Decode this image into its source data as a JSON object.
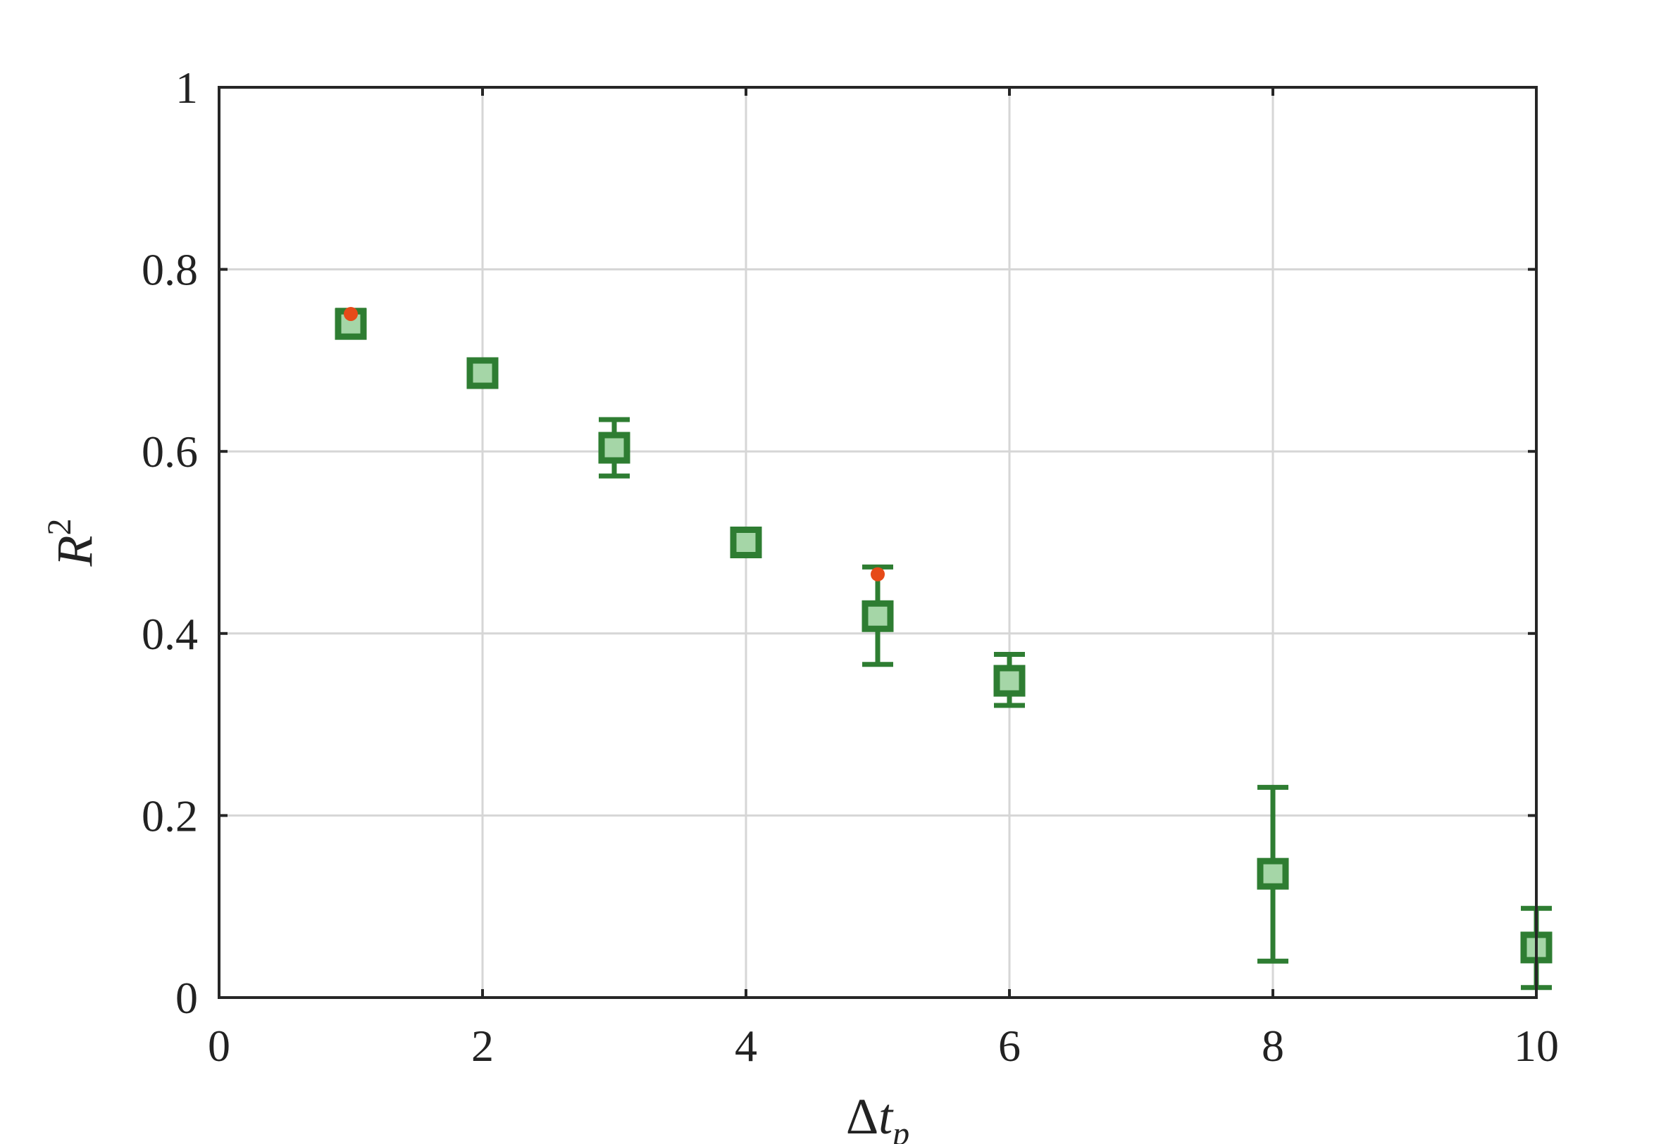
{
  "chart_data": {
    "type": "scatter",
    "xlabel": "Δt_p",
    "ylabel": "R^2",
    "xlim": [
      0,
      10
    ],
    "ylim": [
      0,
      1
    ],
    "grid": true,
    "x_ticks": [
      0,
      2,
      4,
      6,
      8,
      10
    ],
    "x_tick_labels": [
      "0",
      "2",
      "4",
      "6",
      "8",
      "10"
    ],
    "y_ticks": [
      0,
      0.2,
      0.4,
      0.6,
      0.8,
      1
    ],
    "y_tick_labels": [
      "0",
      "0.2",
      "0.4",
      "0.6",
      "0.8",
      "1"
    ],
    "series": [
      {
        "marker": "square",
        "color": "#2e7d32",
        "fill": "#a5d6a7",
        "x": [
          1,
          2,
          3,
          4,
          5,
          6,
          8,
          10
        ],
        "y": [
          0.74,
          0.686,
          0.604,
          0.5,
          0.419,
          0.348,
          0.136,
          0.055
        ],
        "err_low": [
          0.73,
          0.677,
          0.573,
          0.49,
          0.366,
          0.321,
          0.04,
          0.011
        ],
        "err_high": [
          0.755,
          0.695,
          0.635,
          0.51,
          0.473,
          0.377,
          0.231,
          0.098
        ]
      },
      {
        "marker": "dot",
        "color": "#e64a19",
        "x": [
          1,
          5
        ],
        "y": [
          0.751,
          0.465
        ]
      }
    ]
  }
}
